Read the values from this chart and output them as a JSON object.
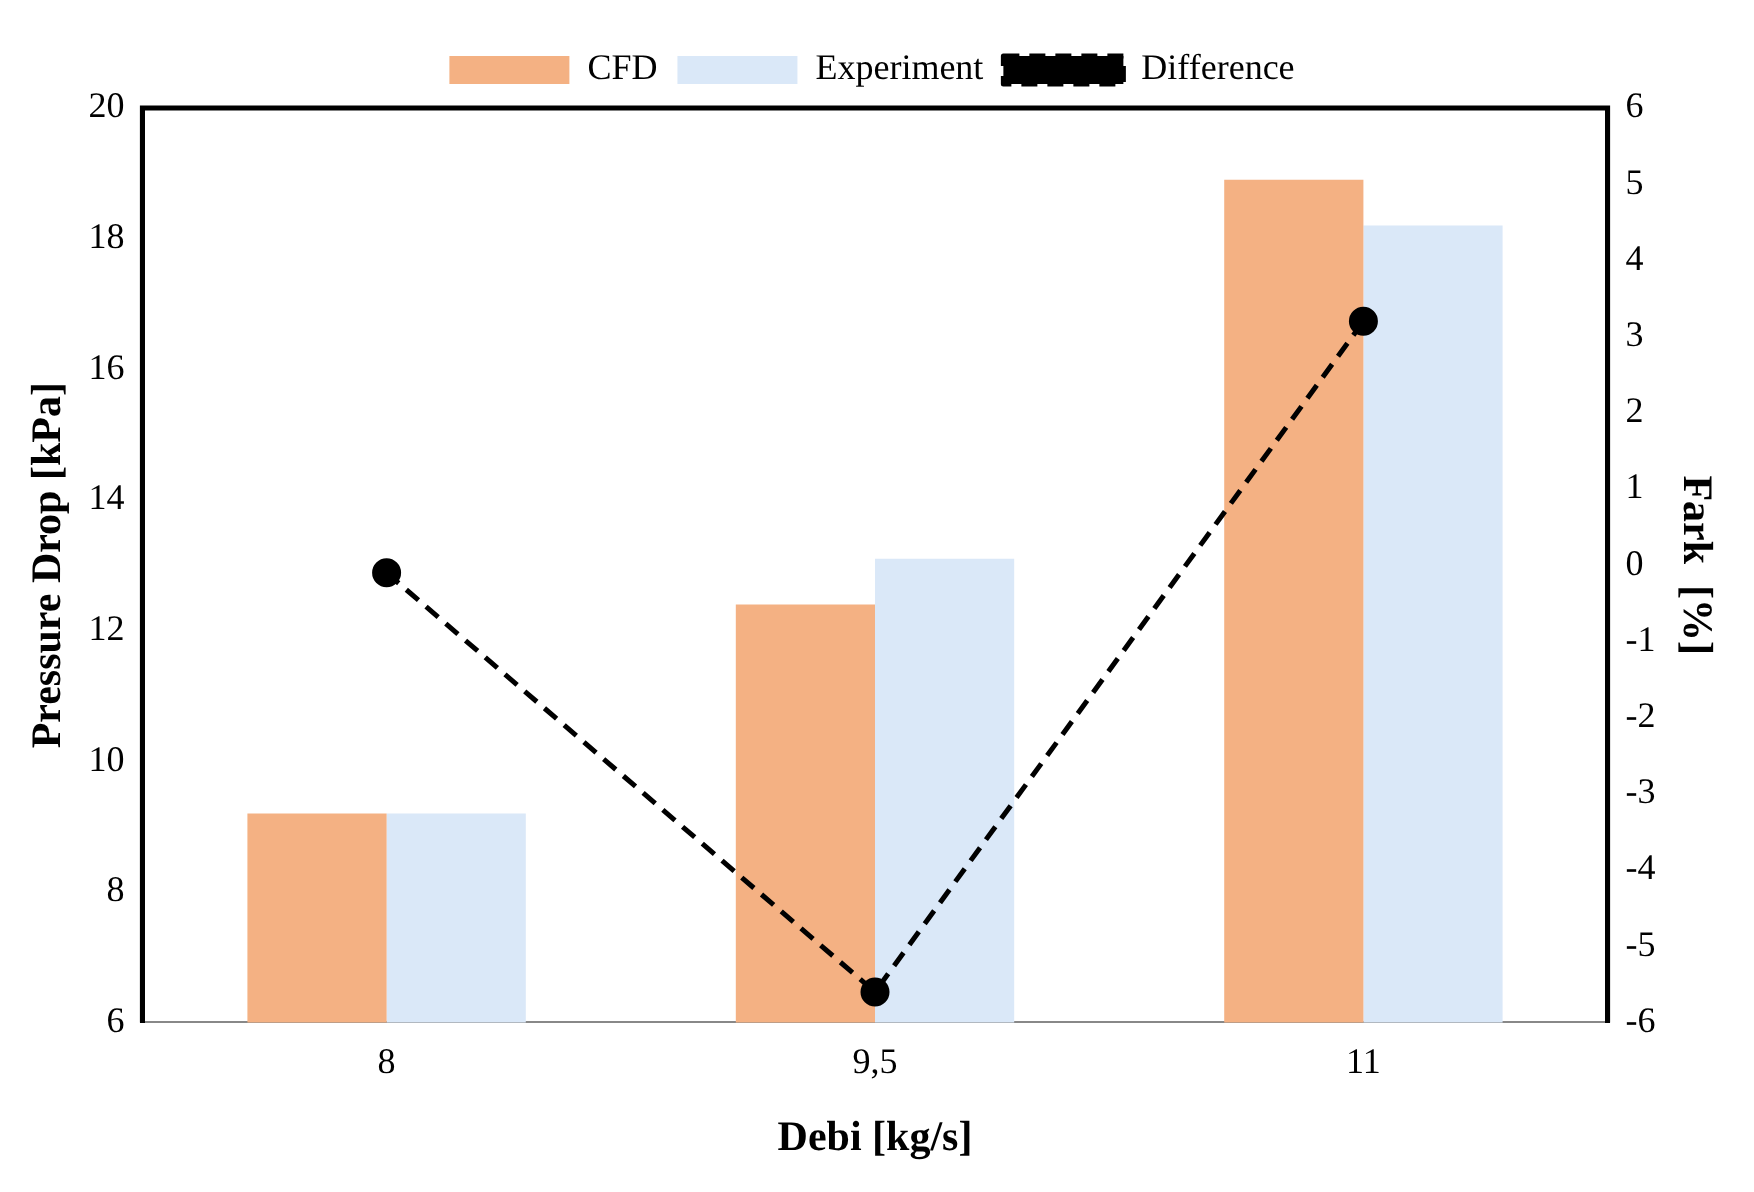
{
  "chart_data": {
    "type": "bar",
    "xlabel": "Debi [kg/s]",
    "ylabel": "Pressure Drop [kPa]",
    "y2label": "Fark  [%]",
    "categories": [
      "8",
      "9,5",
      "11"
    ],
    "series": [
      {
        "name": "CFD",
        "color": "#f4b183",
        "values": [
          9.2,
          12.4,
          18.9
        ]
      },
      {
        "name": "Experiment",
        "color": "#dae8f8",
        "values": [
          9.2,
          13.1,
          18.2
        ]
      },
      {
        "name": "Difference",
        "type": "line",
        "axis": "y2",
        "color": "#000000",
        "values": [
          -0.1,
          -5.6,
          3.2
        ],
        "marker": "circle",
        "line_style": "dashed"
      }
    ],
    "ylim": [
      6,
      20
    ],
    "yticks": [
      6,
      8,
      10,
      12,
      14,
      16,
      18,
      20
    ],
    "y2lim": [
      -6,
      6
    ],
    "y2ticks": [
      -6,
      -5,
      -4,
      -3,
      -2,
      -1,
      0,
      1,
      2,
      3,
      4,
      5,
      6
    ],
    "grid": false,
    "legend": "top"
  }
}
